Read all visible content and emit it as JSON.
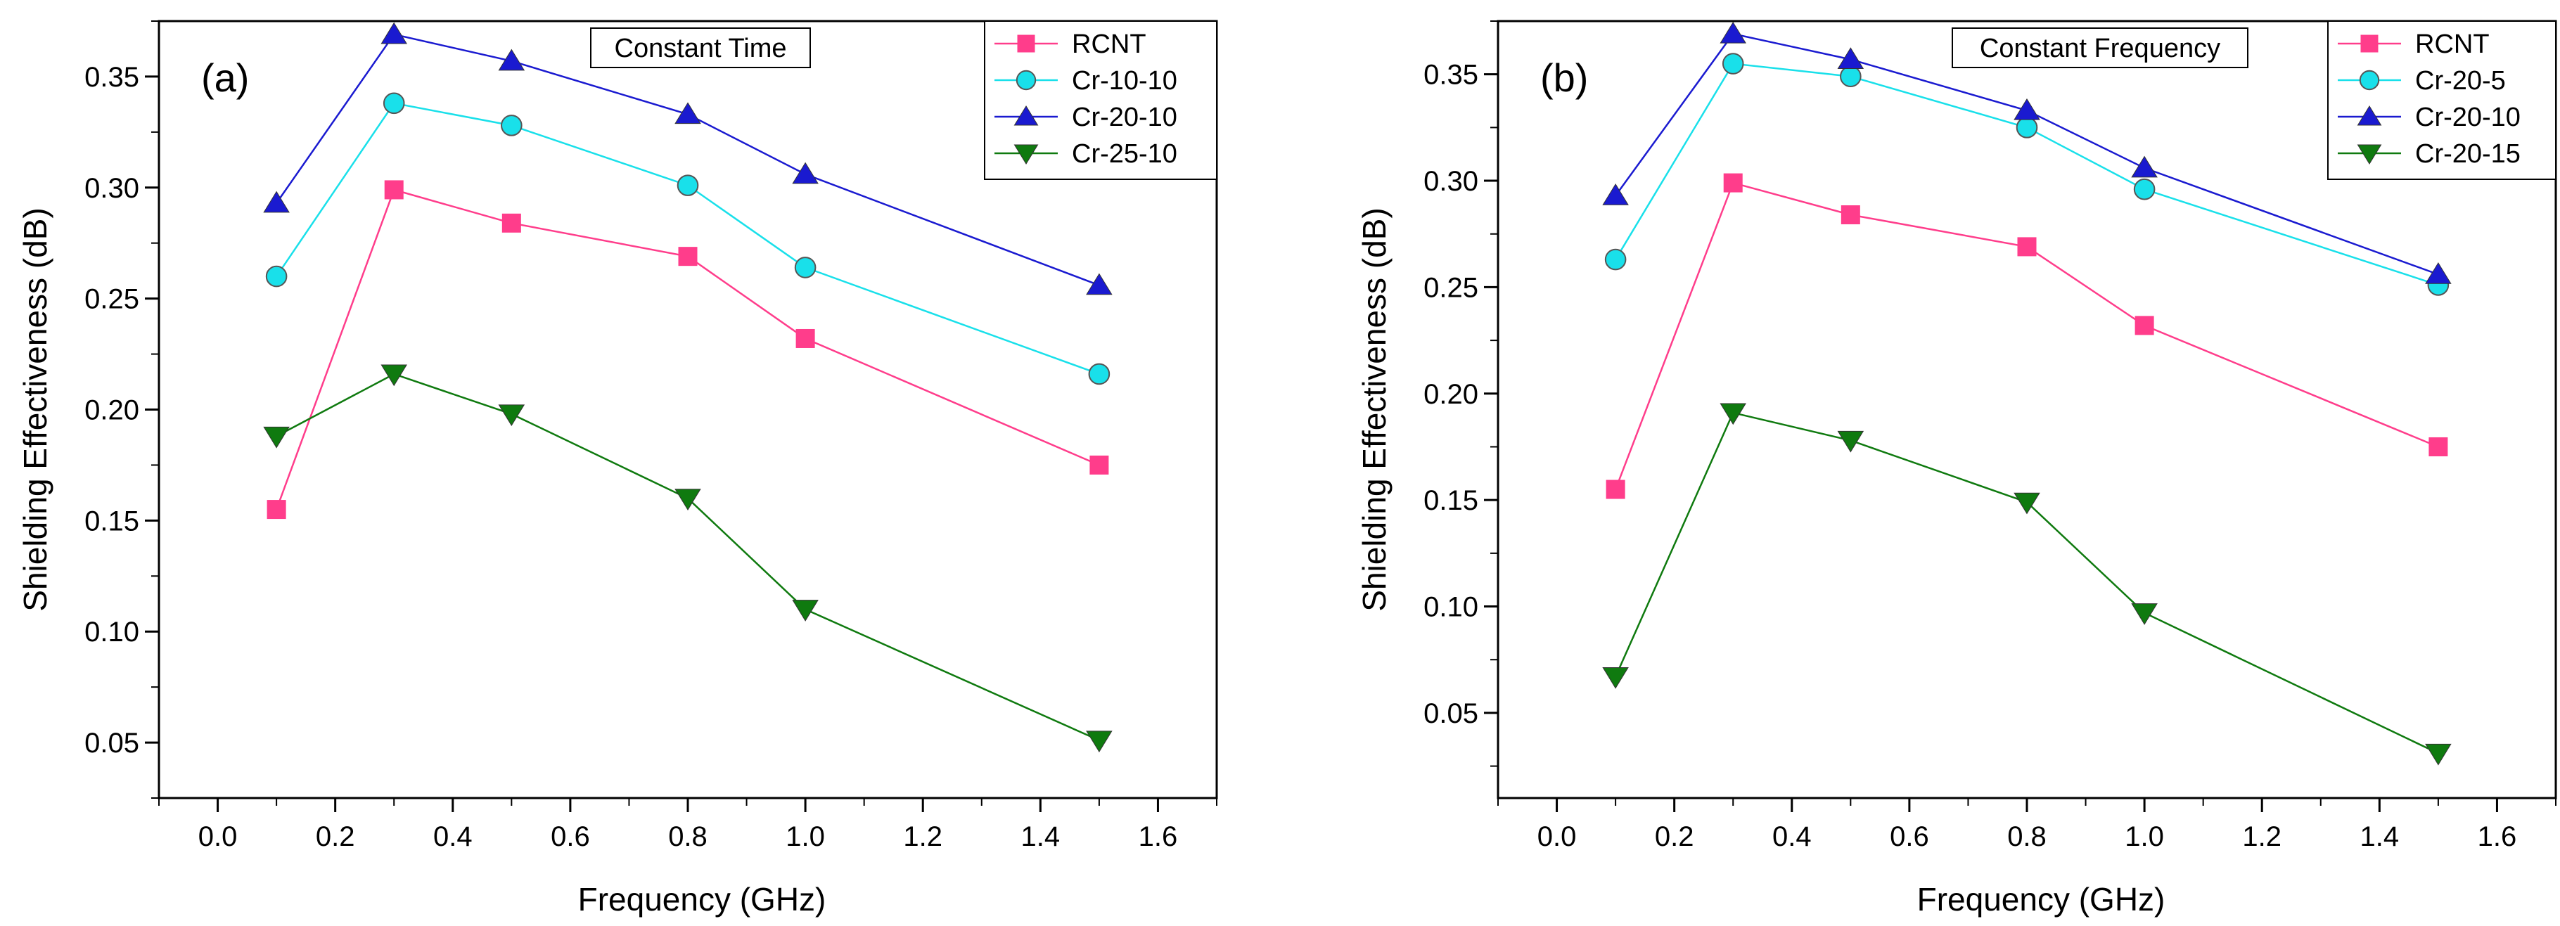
{
  "chart_data": [
    {
      "type": "line",
      "panel_label": "(a)",
      "annotation": "Constant Time",
      "xlabel": "Frequency (GHz)",
      "ylabel": "Shielding Effectiveness (dB)",
      "xlim": [
        -0.1,
        1.7
      ],
      "ylim": [
        0.025,
        0.375
      ],
      "x_ticks": [
        0.0,
        0.2,
        0.4,
        0.6,
        0.8,
        1.0,
        1.2,
        1.4,
        1.6
      ],
      "x_tick_labels": [
        "0.0",
        "0.2",
        "0.4",
        "0.6",
        "0.8",
        "1.0",
        "1.2",
        "1.4",
        "1.6"
      ],
      "y_ticks": [
        0.05,
        0.1,
        0.15,
        0.2,
        0.25,
        0.3,
        0.35
      ],
      "y_tick_labels": [
        "0.05",
        "0.10",
        "0.15",
        "0.20",
        "0.25",
        "0.30",
        "0.35"
      ],
      "grid": false,
      "legend_position": "top-right",
      "x": [
        0.1,
        0.3,
        0.5,
        0.8,
        1.0,
        1.5
      ],
      "series": [
        {
          "name": "RCNT",
          "marker": "square",
          "color": "#ff3d8b",
          "values": [
            0.155,
            0.299,
            0.284,
            0.269,
            0.232,
            0.175
          ]
        },
        {
          "name": "Cr-10-10",
          "marker": "circle",
          "color": "#19e0ea",
          "values": [
            0.26,
            0.338,
            0.328,
            0.301,
            0.264,
            0.216
          ]
        },
        {
          "name": "Cr-20-10",
          "marker": "triangle-up",
          "color": "#1a1ad0",
          "values": [
            0.293,
            0.369,
            0.357,
            0.333,
            0.306,
            0.256
          ]
        },
        {
          "name": "Cr-25-10",
          "marker": "triangle-down",
          "color": "#0f7a0f",
          "values": [
            0.188,
            0.216,
            0.198,
            0.16,
            0.11,
            0.051
          ]
        }
      ]
    },
    {
      "type": "line",
      "panel_label": "(b)",
      "annotation": "Constant Frequency",
      "xlabel": "Frequency (GHz)",
      "ylabel": "Shielding Effectiveness (dB)",
      "xlim": [
        -0.1,
        1.7
      ],
      "ylim": [
        0.01,
        0.375
      ],
      "x_ticks": [
        0.0,
        0.2,
        0.4,
        0.6,
        0.8,
        1.0,
        1.2,
        1.4,
        1.6
      ],
      "x_tick_labels": [
        "0.0",
        "0.2",
        "0.4",
        "0.6",
        "0.8",
        "1.0",
        "1.2",
        "1.4",
        "1.6"
      ],
      "y_ticks": [
        0.05,
        0.1,
        0.15,
        0.2,
        0.25,
        0.3,
        0.35
      ],
      "y_tick_labels": [
        "0.05",
        "0.10",
        "0.15",
        "0.20",
        "0.25",
        "0.30",
        "0.35"
      ],
      "grid": false,
      "legend_position": "top-right",
      "x": [
        0.1,
        0.3,
        0.5,
        0.8,
        1.0,
        1.5
      ],
      "series": [
        {
          "name": "RCNT",
          "marker": "square",
          "color": "#ff3d8b",
          "values": [
            0.155,
            0.299,
            0.284,
            0.269,
            0.232,
            0.175
          ]
        },
        {
          "name": "Cr-20-5",
          "marker": "circle",
          "color": "#19e0ea",
          "values": [
            0.263,
            0.355,
            0.349,
            0.325,
            0.296,
            0.251
          ]
        },
        {
          "name": "Cr-20-10",
          "marker": "triangle-up",
          "color": "#1a1ad0",
          "values": [
            0.293,
            0.369,
            0.357,
            0.333,
            0.306,
            0.256
          ]
        },
        {
          "name": "Cr-20-15",
          "marker": "triangle-down",
          "color": "#0f7a0f",
          "values": [
            0.067,
            0.191,
            0.178,
            0.149,
            0.097,
            0.031
          ]
        }
      ]
    }
  ]
}
